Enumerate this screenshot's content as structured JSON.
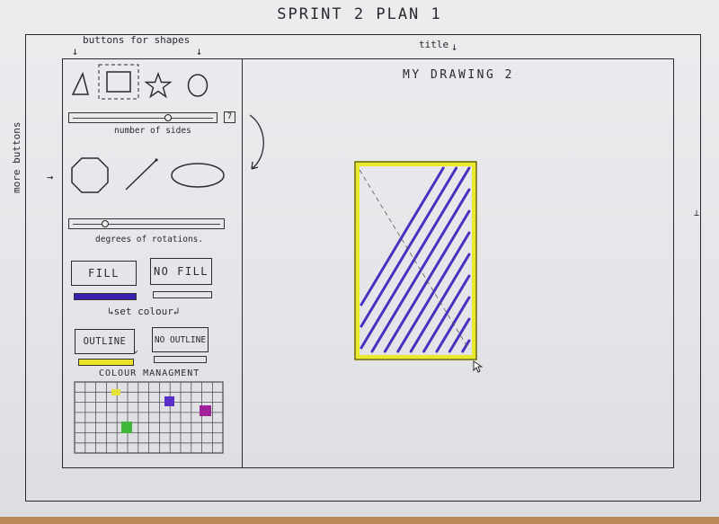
{
  "plan_title": "SPRINT 2 PLAN 1",
  "annotations": {
    "buttons_for_shapes": "buttons for shapes",
    "title_note": "title",
    "more_buttons": "more buttons"
  },
  "shapes_row1": [
    {
      "name": "triangle-icon"
    },
    {
      "name": "rectangle-icon",
      "selected": true
    },
    {
      "name": "star-icon"
    },
    {
      "name": "circle-icon"
    }
  ],
  "sides_slider": {
    "label": "number of sides",
    "value": "7",
    "level": 0.68
  },
  "shapes_row2": [
    {
      "name": "octagon-icon"
    },
    {
      "name": "line-icon"
    },
    {
      "name": "ellipse-icon"
    }
  ],
  "rotation_slider": {
    "label": "degrees of rotations.",
    "level": 0.2
  },
  "fill": {
    "fill_label": "FILL",
    "no_fill_label": "NO FILL",
    "fill_color": "#3a1fb0"
  },
  "set_colour_label": "set colour",
  "outline": {
    "outline_label": "OUTLINE",
    "no_outline_label": "NO OUTLINE",
    "outline_color": "#e8e229"
  },
  "colour_management": {
    "title": "COLOUR MANAGMENT",
    "marked_colors": [
      "#e3e13a",
      "#5a2fc8",
      "#a2219a",
      "#3fb53a"
    ]
  },
  "canvas": {
    "title": "MY DRAWING 2",
    "shape_fill_color": "#4b2fbf",
    "shape_outline_color": "#eaea2c"
  }
}
